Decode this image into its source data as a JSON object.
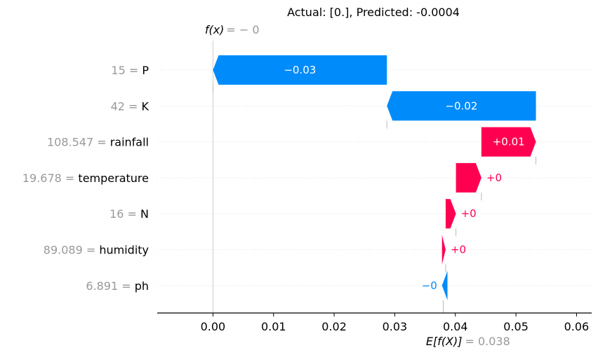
{
  "chart_data": {
    "type": "waterfall",
    "title": "Actual: [0.], Predicted: -0.0004",
    "fx_label": "f(x)",
    "fx_value": "= − 0",
    "efx_label": "E[f(X)]",
    "efx_value": "= 0.038",
    "base_value": 0.038,
    "xlim": [
      -0.0092,
      0.0625
    ],
    "xticks": [
      0.0,
      0.01,
      0.02,
      0.03,
      0.04,
      0.05,
      0.06
    ],
    "xtick_labels": [
      "0.00",
      "0.01",
      "0.02",
      "0.03",
      "0.04",
      "0.05",
      "0.06"
    ],
    "features": [
      {
        "value": "15",
        "name": "P",
        "start": 0.0287,
        "end": 0.0,
        "label": "−0.03"
      },
      {
        "value": "42",
        "name": "K",
        "start": 0.0533,
        "end": 0.0287,
        "label": "−0.02"
      },
      {
        "value": "108.547",
        "name": "rainfall",
        "start": 0.0443,
        "end": 0.0533,
        "label": "+0.01"
      },
      {
        "value": "19.678",
        "name": "temperature",
        "start": 0.0401,
        "end": 0.0443,
        "label": "+0"
      },
      {
        "value": "16",
        "name": "N",
        "start": 0.0384,
        "end": 0.0401,
        "label": "+0"
      },
      {
        "value": "89.089",
        "name": "humidity",
        "start": 0.0378,
        "end": 0.0384,
        "label": "+0"
      },
      {
        "value": "6.891",
        "name": "ph",
        "start": 0.0387,
        "end": 0.0378,
        "label": "−0"
      }
    ],
    "colors": {
      "positive": "#ff0051",
      "negative": "#008bfb",
      "muted": "#999999",
      "axis": "#000000"
    }
  }
}
